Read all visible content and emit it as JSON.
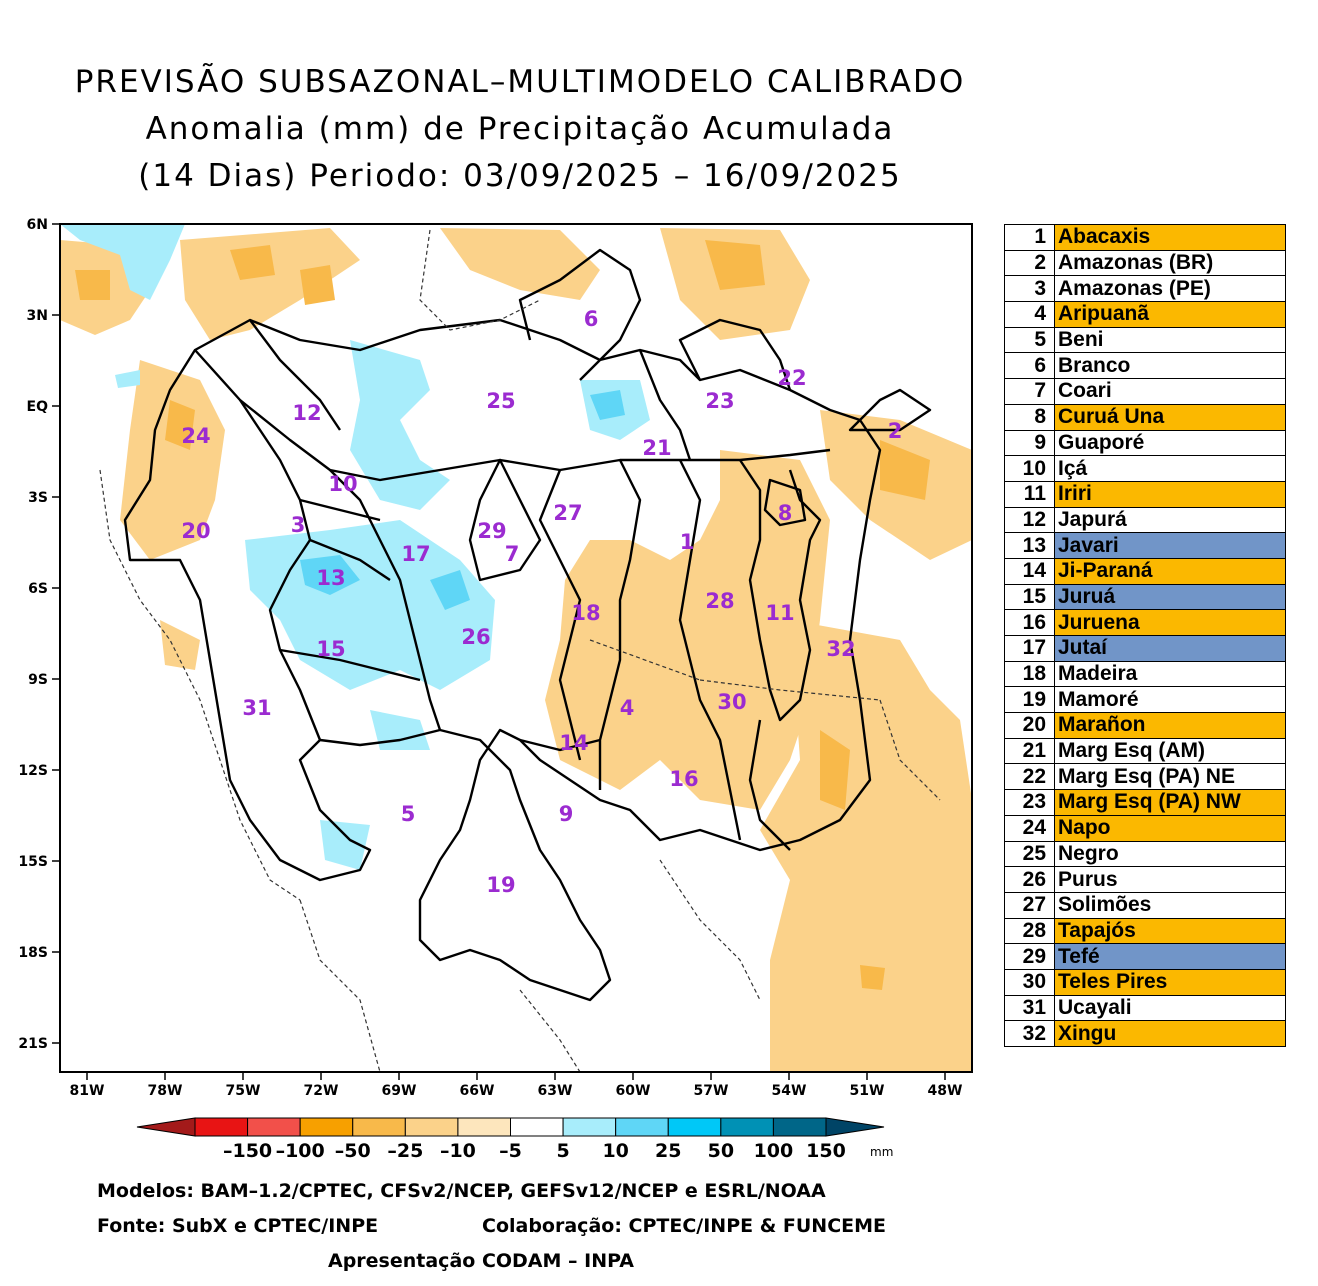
{
  "title": {
    "line1": "PREVISÃO SUBSAZONAL–MULTIMODELO CALIBRADO",
    "line2": "Anomalia (mm) de Precipitação Acumulada",
    "line3": "(14 Dias) Periodo: 03/09/2025 – 16/09/2025"
  },
  "axes": {
    "lat_labels": [
      "6N",
      "3N",
      "EQ",
      "3S",
      "6S",
      "9S",
      "12S",
      "15S",
      "18S",
      "21S"
    ],
    "lon_labels": [
      "81W",
      "78W",
      "75W",
      "72W",
      "69W",
      "66W",
      "63W",
      "60W",
      "57W",
      "54W",
      "51W",
      "48W"
    ]
  },
  "basins_on_map": [
    {
      "id": "1"
    },
    {
      "id": "2"
    },
    {
      "id": "3"
    },
    {
      "id": "4"
    },
    {
      "id": "5"
    },
    {
      "id": "6"
    },
    {
      "id": "7"
    },
    {
      "id": "8"
    },
    {
      "id": "9"
    },
    {
      "id": "10"
    },
    {
      "id": "11"
    },
    {
      "id": "12"
    },
    {
      "id": "13"
    },
    {
      "id": "14"
    },
    {
      "id": "15"
    },
    {
      "id": "16"
    },
    {
      "id": "17"
    },
    {
      "id": "18"
    },
    {
      "id": "19"
    },
    {
      "id": "20"
    },
    {
      "id": "21"
    },
    {
      "id": "22"
    },
    {
      "id": "23"
    },
    {
      "id": "24"
    },
    {
      "id": "25"
    },
    {
      "id": "26"
    },
    {
      "id": "27"
    },
    {
      "id": "28"
    },
    {
      "id": "29"
    },
    {
      "id": "30"
    },
    {
      "id": "31"
    },
    {
      "id": "32"
    }
  ],
  "colorbar": {
    "labels": [
      "–150",
      "–100",
      "–50",
      "–25",
      "–10",
      "–5",
      "5",
      "10",
      "25",
      "50",
      "100",
      "150"
    ],
    "unit": "mm",
    "colors": [
      "#a31a1a",
      "#e81414",
      "#f2504a",
      "#f7a000",
      "#f8b94a",
      "#fbd28a",
      "#fde6bd",
      "#ffffff",
      "#a8edfb",
      "#5fd6f6",
      "#00c8f7",
      "#0091b5",
      "#006688",
      "#004466"
    ]
  },
  "legend": {
    "rows": [
      {
        "num": "1",
        "name": "Abacaxis",
        "color": "#fbb800"
      },
      {
        "num": "2",
        "name": "Amazonas (BR)",
        "color": "#ffffff"
      },
      {
        "num": "3",
        "name": "Amazonas (PE)",
        "color": "#ffffff"
      },
      {
        "num": "4",
        "name": "Aripuanã",
        "color": "#fbb800"
      },
      {
        "num": "5",
        "name": "Beni",
        "color": "#ffffff"
      },
      {
        "num": "6",
        "name": "Branco",
        "color": "#ffffff"
      },
      {
        "num": "7",
        "name": "Coari",
        "color": "#ffffff"
      },
      {
        "num": "8",
        "name": "Curuá Una",
        "color": "#fbb800"
      },
      {
        "num": "9",
        "name": "Guaporé",
        "color": "#ffffff"
      },
      {
        "num": "10",
        "name": "Içá",
        "color": "#ffffff"
      },
      {
        "num": "11",
        "name": "Iriri",
        "color": "#fbb800"
      },
      {
        "num": "12",
        "name": "Japurá",
        "color": "#ffffff"
      },
      {
        "num": "13",
        "name": "Javari",
        "color": "#7195c8"
      },
      {
        "num": "14",
        "name": "Ji-Paraná",
        "color": "#fbb800"
      },
      {
        "num": "15",
        "name": "Juruá",
        "color": "#7195c8"
      },
      {
        "num": "16",
        "name": "Juruena",
        "color": "#fbb800"
      },
      {
        "num": "17",
        "name": "Jutaí",
        "color": "#7195c8"
      },
      {
        "num": "18",
        "name": "Madeira",
        "color": "#ffffff"
      },
      {
        "num": "19",
        "name": "Mamoré",
        "color": "#ffffff"
      },
      {
        "num": "20",
        "name": "Marañon",
        "color": "#fbb800"
      },
      {
        "num": "21",
        "name": "Marg Esq (AM)",
        "color": "#ffffff"
      },
      {
        "num": "22",
        "name": "Marg Esq (PA) NE",
        "color": "#ffffff"
      },
      {
        "num": "23",
        "name": "Marg Esq (PA) NW",
        "color": "#fbb800"
      },
      {
        "num": "24",
        "name": "Napo",
        "color": "#fbb800"
      },
      {
        "num": "25",
        "name": "Negro",
        "color": "#ffffff"
      },
      {
        "num": "26",
        "name": "Purus",
        "color": "#ffffff"
      },
      {
        "num": "27",
        "name": "Solimões",
        "color": "#ffffff"
      },
      {
        "num": "28",
        "name": "Tapajós",
        "color": "#fbb800"
      },
      {
        "num": "29",
        "name": "Tefé",
        "color": "#7195c8"
      },
      {
        "num": "30",
        "name": "Teles Pires",
        "color": "#fbb800"
      },
      {
        "num": "31",
        "name": "Ucayali",
        "color": "#ffffff"
      },
      {
        "num": "32",
        "name": "Xingu",
        "color": "#fbb800"
      }
    ]
  },
  "footer": {
    "models": "Modelos: BAM–1.2/CPTEC, CFSv2/NCEP, GEFSv12/NCEP e ESRL/NOAA",
    "source": "Fonte: SubX e CPTEC/INPE",
    "collab": "Colaboração: CPTEC/INPE & FUNCEME",
    "presentation": "Apresentação CODAM – INPA"
  }
}
